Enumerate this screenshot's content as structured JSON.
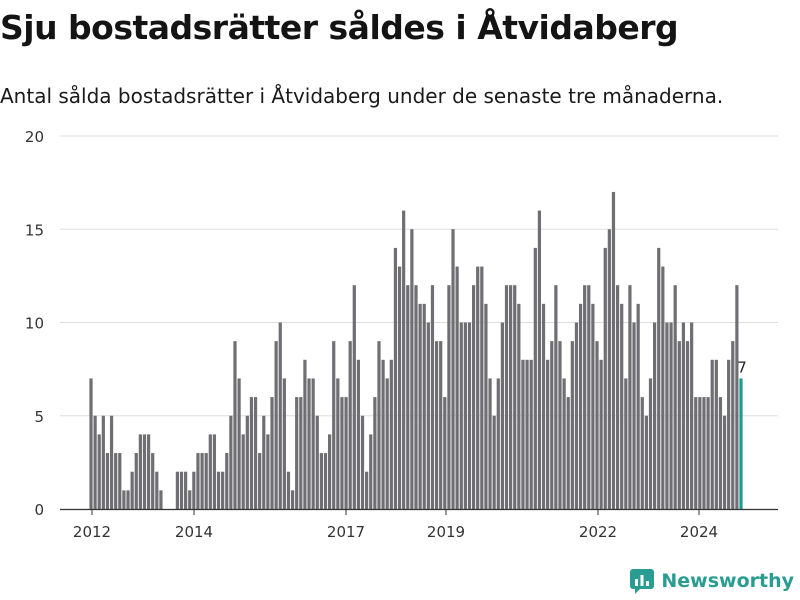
{
  "header": {
    "title": "Sju bostadsrätter såldes i Åtvidaberg",
    "subtitle": "Antal sålda bostadsrätter i Åtvidaberg under de senaste tre månaderna."
  },
  "footer": {
    "brand": "Newsworthy"
  },
  "colors": {
    "bar": "#6f6e73",
    "highlight": "#1f9a90",
    "grid": "#dddddd",
    "axis": "#333333",
    "brand": "#2a9d93"
  },
  "chart_data": {
    "type": "bar",
    "title": "Sju bostadsrätter såldes i Åtvidaberg",
    "subtitle": "Antal sålda bostadsrätter i Åtvidaberg under de senaste tre månaderna.",
    "xlabel": "",
    "ylabel": "",
    "ylim": [
      0,
      20
    ],
    "yticks": [
      0,
      5,
      10,
      15,
      20
    ],
    "xticks": [
      "2012",
      "2014",
      "2017",
      "2019",
      "2022",
      "2024"
    ],
    "grid": true,
    "last_value_label": "7",
    "values": [
      7,
      5,
      4,
      5,
      3,
      5,
      3,
      3,
      1,
      1,
      2,
      3,
      4,
      4,
      4,
      3,
      2,
      1,
      0,
      0,
      0,
      2,
      2,
      2,
      1,
      2,
      3,
      3,
      3,
      4,
      4,
      2,
      2,
      3,
      5,
      9,
      7,
      4,
      5,
      6,
      6,
      3,
      5,
      4,
      6,
      9,
      10,
      7,
      2,
      1,
      6,
      6,
      8,
      7,
      7,
      5,
      3,
      3,
      4,
      9,
      7,
      6,
      6,
      9,
      12,
      8,
      5,
      2,
      4,
      6,
      9,
      8,
      7,
      8,
      14,
      13,
      16,
      12,
      15,
      12,
      11,
      11,
      10,
      12,
      9,
      9,
      6,
      12,
      15,
      13,
      10,
      10,
      10,
      12,
      13,
      13,
      11,
      7,
      5,
      7,
      10,
      12,
      12,
      12,
      11,
      8,
      8,
      8,
      14,
      16,
      11,
      8,
      9,
      12,
      9,
      7,
      6,
      9,
      10,
      11,
      12,
      12,
      11,
      9,
      8,
      14,
      15,
      17,
      12,
      11,
      7,
      12,
      10,
      11,
      6,
      5,
      7,
      10,
      14,
      13,
      10,
      10,
      12,
      9,
      10,
      9,
      10,
      6,
      6,
      6,
      6,
      8,
      8,
      6,
      5,
      8,
      9,
      12,
      7
    ],
    "dates_note_first_last": [
      "2012",
      "2024"
    ]
  }
}
